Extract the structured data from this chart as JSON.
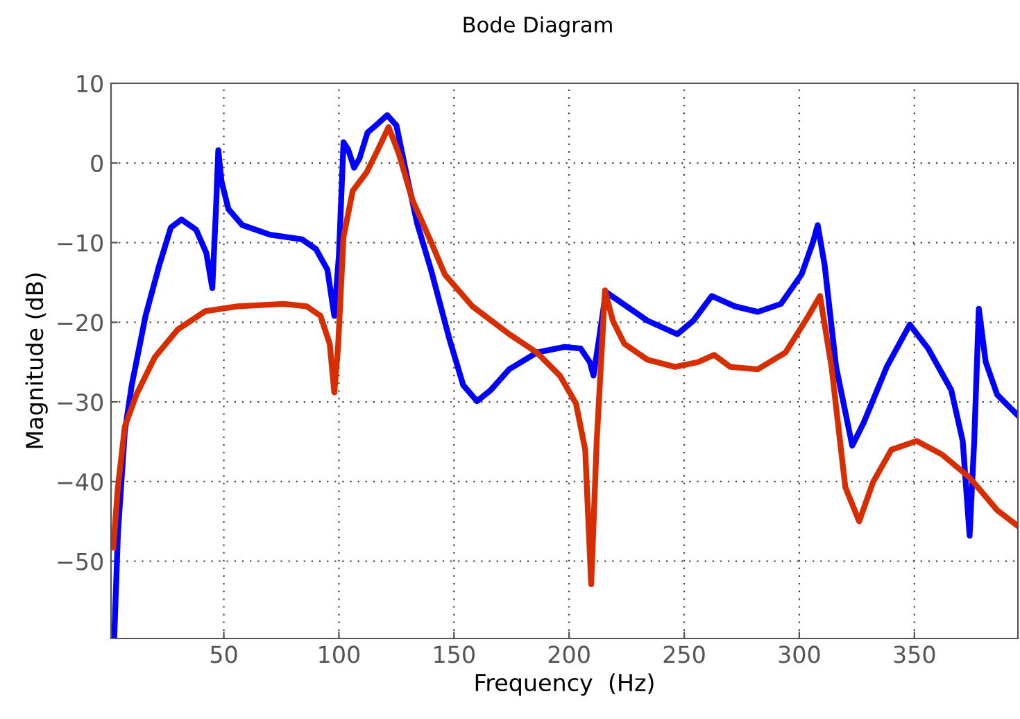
{
  "chart_data": {
    "type": "line",
    "title": "Bode Diagram",
    "xlabel": "Frequency  (Hz)",
    "ylabel": "Magnitude (dB)",
    "xlim": [
      1,
      395
    ],
    "ylim": [
      -59.7,
      10
    ],
    "xticks": [
      50,
      100,
      150,
      200,
      250,
      300,
      350
    ],
    "yticks": [
      -50,
      -40,
      -30,
      -20,
      -10,
      0,
      10
    ],
    "grid": true,
    "marker": "none",
    "line_style": "solid",
    "series": [
      {
        "color": "#0000ff",
        "x": [
          2.4,
          4,
          7,
          10,
          16,
          22,
          27,
          31.6,
          38,
          42.4,
          45,
          46.6,
          47.6,
          49,
          52,
          58,
          70,
          84,
          90,
          95,
          98,
          100,
          102,
          104,
          106.6,
          109,
          112.4,
          116,
          121,
          125,
          130,
          134,
          140,
          148,
          154,
          160,
          166,
          174,
          186,
          198,
          205,
          209,
          210.6,
          213,
          216,
          222,
          234,
          247,
          254,
          262,
          272,
          282,
          292,
          301,
          306,
          308,
          311,
          316,
          323,
          328,
          338,
          348,
          356,
          366,
          371,
          374,
          376,
          378,
          381,
          386,
          395
        ],
        "values": [
          -59.6,
          -46.5,
          -33.7,
          -27.9,
          -19.2,
          -12.8,
          -8.1,
          -7.1,
          -8.4,
          -11.3,
          -15.7,
          -5.8,
          1.6,
          -2.3,
          -5.8,
          -7.8,
          -9,
          -9.6,
          -10.8,
          -13.4,
          -19.2,
          -11.6,
          2.6,
          1.7,
          -0.6,
          0.6,
          3.8,
          4.7,
          6.0,
          4.7,
          -2.3,
          -7.6,
          -13.4,
          -22.1,
          -27.9,
          -29.9,
          -28.5,
          -25.9,
          -23.8,
          -23.1,
          -23.3,
          -25,
          -26.7,
          -22.1,
          -16.2,
          -17.4,
          -19.8,
          -21.5,
          -19.8,
          -16.7,
          -18,
          -18.7,
          -17.7,
          -14,
          -9.9,
          -7.8,
          -12.8,
          -25.6,
          -35.5,
          -32.6,
          -25.6,
          -20.3,
          -23.3,
          -28.5,
          -34.9,
          -46.8,
          -34.9,
          -18.3,
          -25,
          -29.1,
          -31.7
        ]
      },
      {
        "color": "#d62e00",
        "x": [
          2,
          4,
          7,
          12,
          20,
          30,
          42,
          56,
          76,
          86,
          92,
          96,
          98,
          99.6,
          102,
          106,
          112,
          117,
          121.6,
          126,
          132,
          140,
          146,
          158,
          174,
          186,
          196,
          203,
          207,
          209.6,
          212,
          215.6,
          219,
          224,
          234,
          246,
          256,
          263,
          270,
          282,
          294,
          304,
          309,
          314,
          320,
          326,
          332,
          340,
          351,
          362,
          374,
          386,
          395
        ],
        "values": [
          -48.3,
          -40.7,
          -33.1,
          -29.1,
          -24.4,
          -20.9,
          -18.6,
          -18,
          -17.7,
          -18,
          -19.2,
          -22.7,
          -28.8,
          -23.3,
          -9.3,
          -3.5,
          -1.2,
          1.7,
          4.5,
          1.2,
          -4.7,
          -9.9,
          -14,
          -18,
          -21.5,
          -23.8,
          -26.7,
          -30.2,
          -36,
          -52.9,
          -34.9,
          -16,
          -19.8,
          -22.7,
          -24.7,
          -25.6,
          -25,
          -24.1,
          -25.6,
          -25.9,
          -23.8,
          -19.2,
          -16.7,
          -25.6,
          -40.7,
          -45,
          -40.1,
          -36,
          -34.9,
          -36.6,
          -39.5,
          -43.6,
          -45.6
        ]
      }
    ]
  }
}
